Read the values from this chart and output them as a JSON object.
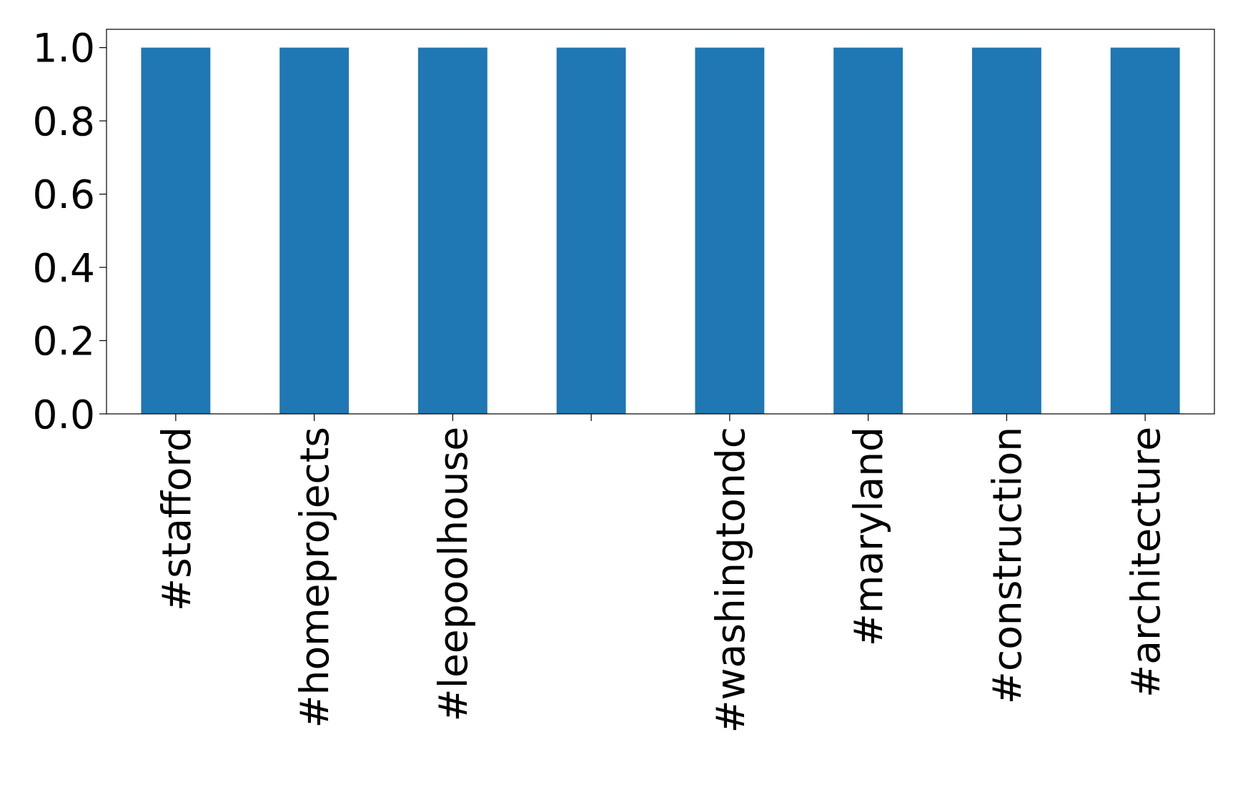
{
  "chart_data": {
    "type": "bar",
    "categories": [
      "#stafford",
      "#homeprojects",
      "#leepoolhouse",
      null,
      "#washingtondc",
      "#maryland",
      "#construction",
      "#architecture"
    ],
    "values": [
      1,
      1,
      1,
      1,
      1,
      1,
      1,
      1
    ],
    "color": "#1f77b4",
    "ylim": [
      0,
      1.05
    ],
    "yticks": [
      {
        "value": 0,
        "label": "0.0"
      },
      {
        "value": 0.2,
        "label": "0.2"
      },
      {
        "value": 0.4,
        "label": "0.4"
      },
      {
        "value": 0.6,
        "label": "0.6"
      },
      {
        "value": 0.8,
        "label": "0.8"
      },
      {
        "value": 1,
        "label": "1.0"
      }
    ],
    "grid": false
  }
}
